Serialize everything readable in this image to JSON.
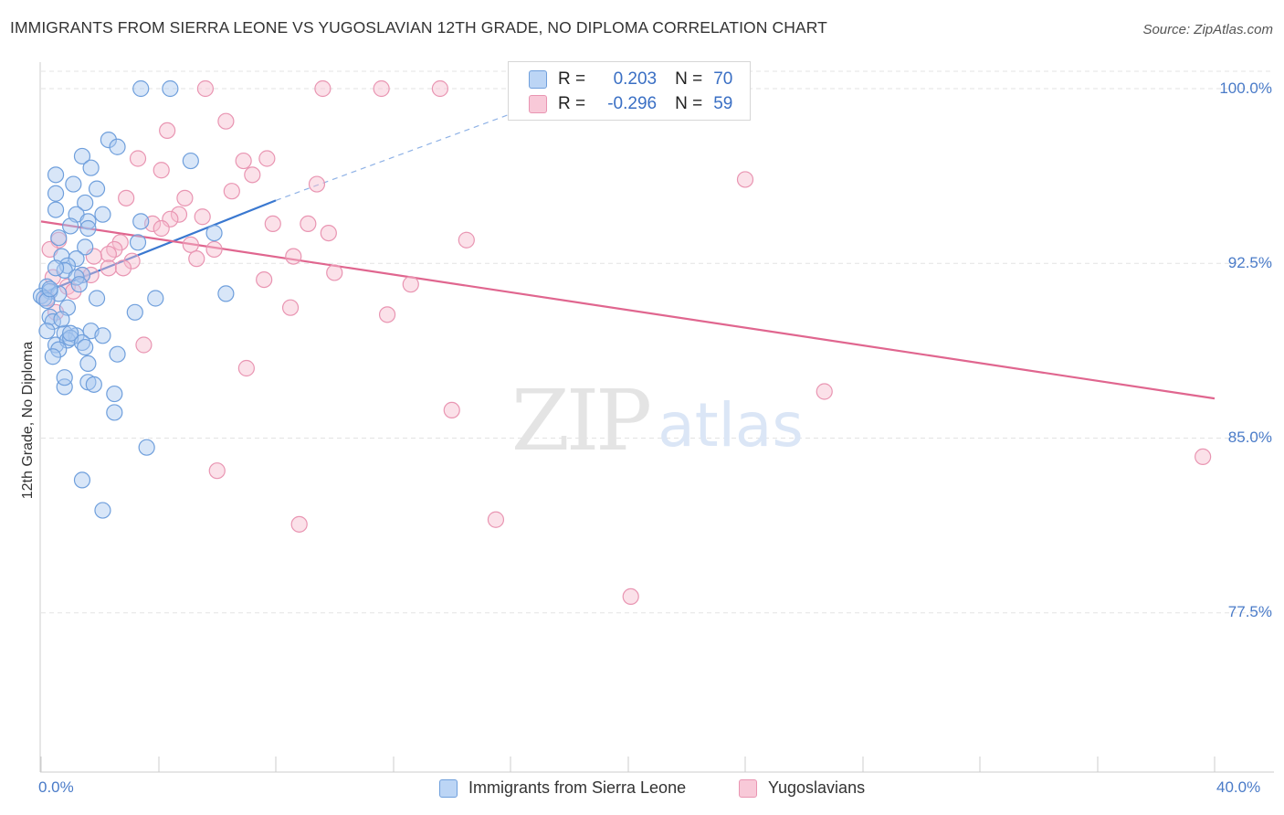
{
  "title": "IMMIGRANTS FROM SIERRA LEONE VS YUGOSLAVIAN 12TH GRADE, NO DIPLOMA CORRELATION CHART",
  "source": "Source: ZipAtlas.com",
  "watermark": {
    "zip": "ZIP",
    "atlas": "atlas"
  },
  "legend": {
    "r_label": "R =",
    "n_label": "N =",
    "series1": {
      "r": "0.203",
      "n": "70"
    },
    "series2": {
      "r": "-0.296",
      "n": "59"
    }
  },
  "colors": {
    "blue_fill": "#a9c8f0",
    "blue_stroke": "#6f9fdc",
    "blue_line": "#3a78d0",
    "pink_fill": "#f6bccf",
    "pink_stroke": "#e995b2",
    "pink_line": "#e0668f",
    "tick_text": "#4a7bc8",
    "grid": "#e3e3e3"
  },
  "chart_data": {
    "type": "scatter",
    "title": "IMMIGRANTS FROM SIERRA LEONE VS YUGOSLAVIAN 12TH GRADE, NO DIPLOMA CORRELATION CHART",
    "xlabel": "",
    "ylabel": "12th Grade, No Diploma",
    "xlim": [
      0,
      40
    ],
    "ylim": [
      70.0,
      101.0
    ],
    "x_tick_labels": [
      "0.0%",
      "40.0%"
    ],
    "y_ticks": [
      100.0,
      92.5,
      85.0,
      77.5
    ],
    "y_tick_labels": [
      "100.0%",
      "92.5%",
      "85.0%",
      "77.5%"
    ],
    "legend_position": "top-center",
    "series": [
      {
        "name": "Immigrants from Sierra Leone",
        "r": 0.203,
        "n": 70,
        "trend": {
          "x0": 0.0,
          "y0": 91.2,
          "x1": 8.0,
          "y1": 95.2,
          "dash_to_x": 20.5,
          "dash_to_y": 101.0
        },
        "points": [
          [
            3.4,
            100.0
          ],
          [
            4.4,
            100.0
          ],
          [
            2.3,
            97.8
          ],
          [
            2.6,
            97.5
          ],
          [
            1.4,
            97.1
          ],
          [
            5.1,
            96.9
          ],
          [
            1.7,
            96.6
          ],
          [
            0.5,
            96.3
          ],
          [
            1.1,
            95.9
          ],
          [
            1.9,
            95.7
          ],
          [
            0.5,
            95.5
          ],
          [
            1.5,
            95.1
          ],
          [
            0.5,
            94.8
          ],
          [
            1.2,
            94.6
          ],
          [
            2.1,
            94.6
          ],
          [
            3.4,
            94.3
          ],
          [
            1.6,
            94.3
          ],
          [
            1.0,
            94.1
          ],
          [
            1.6,
            94.0
          ],
          [
            5.9,
            93.8
          ],
          [
            0.6,
            93.6
          ],
          [
            3.3,
            93.4
          ],
          [
            1.5,
            93.2
          ],
          [
            0.7,
            92.8
          ],
          [
            1.2,
            92.7
          ],
          [
            0.9,
            92.4
          ],
          [
            0.8,
            92.2
          ],
          [
            1.4,
            92.0
          ],
          [
            1.2,
            91.9
          ],
          [
            1.3,
            91.6
          ],
          [
            0.2,
            91.5
          ],
          [
            0.3,
            91.3
          ],
          [
            0.6,
            91.2
          ],
          [
            0.0,
            91.1
          ],
          [
            0.1,
            91.0
          ],
          [
            1.9,
            91.0
          ],
          [
            3.9,
            91.0
          ],
          [
            6.3,
            91.2
          ],
          [
            0.9,
            90.6
          ],
          [
            3.2,
            90.4
          ],
          [
            0.3,
            90.2
          ],
          [
            0.4,
            90.0
          ],
          [
            0.2,
            89.6
          ],
          [
            1.7,
            89.6
          ],
          [
            0.8,
            89.5
          ],
          [
            1.2,
            89.4
          ],
          [
            2.1,
            89.4
          ],
          [
            0.5,
            89.0
          ],
          [
            0.9,
            89.2
          ],
          [
            1.0,
            89.3
          ],
          [
            1.4,
            89.1
          ],
          [
            0.6,
            88.8
          ],
          [
            2.6,
            88.6
          ],
          [
            0.4,
            88.5
          ],
          [
            1.6,
            88.2
          ],
          [
            1.6,
            87.4
          ],
          [
            1.8,
            87.3
          ],
          [
            0.8,
            87.2
          ],
          [
            0.8,
            87.6
          ],
          [
            2.5,
            86.9
          ],
          [
            2.5,
            86.1
          ],
          [
            3.6,
            84.6
          ],
          [
            1.4,
            83.2
          ],
          [
            2.1,
            81.9
          ],
          [
            0.2,
            90.9
          ],
          [
            0.7,
            90.1
          ],
          [
            1.0,
            89.5
          ],
          [
            1.5,
            88.9
          ],
          [
            0.3,
            91.4
          ],
          [
            0.5,
            92.3
          ]
        ]
      },
      {
        "name": "Yugoslavians",
        "r": -0.296,
        "n": 59,
        "trend": {
          "x0": 0.0,
          "y0": 94.3,
          "x1": 40.0,
          "y1": 86.7
        },
        "points": [
          [
            5.6,
            100.0
          ],
          [
            9.6,
            100.0
          ],
          [
            11.6,
            100.0
          ],
          [
            13.6,
            100.0
          ],
          [
            4.3,
            98.2
          ],
          [
            6.3,
            98.6
          ],
          [
            3.3,
            97.0
          ],
          [
            4.1,
            96.5
          ],
          [
            6.9,
            96.9
          ],
          [
            7.7,
            97.0
          ],
          [
            7.2,
            96.3
          ],
          [
            6.5,
            95.6
          ],
          [
            9.4,
            95.9
          ],
          [
            24.0,
            96.1
          ],
          [
            2.9,
            95.3
          ],
          [
            4.9,
            95.3
          ],
          [
            4.7,
            94.6
          ],
          [
            5.5,
            94.5
          ],
          [
            4.4,
            94.4
          ],
          [
            3.8,
            94.2
          ],
          [
            7.9,
            94.2
          ],
          [
            9.1,
            94.2
          ],
          [
            4.1,
            94.0
          ],
          [
            9.8,
            93.8
          ],
          [
            0.6,
            93.5
          ],
          [
            2.7,
            93.4
          ],
          [
            5.1,
            93.3
          ],
          [
            5.9,
            93.1
          ],
          [
            2.5,
            93.1
          ],
          [
            14.5,
            93.5
          ],
          [
            0.3,
            93.1
          ],
          [
            2.3,
            92.9
          ],
          [
            1.8,
            92.8
          ],
          [
            8.6,
            92.8
          ],
          [
            5.3,
            92.7
          ],
          [
            3.1,
            92.6
          ],
          [
            2.3,
            92.3
          ],
          [
            2.8,
            92.3
          ],
          [
            1.4,
            92.0
          ],
          [
            1.7,
            92.0
          ],
          [
            10.0,
            92.1
          ],
          [
            7.6,
            91.8
          ],
          [
            12.6,
            91.6
          ],
          [
            0.4,
            91.9
          ],
          [
            0.9,
            91.5
          ],
          [
            1.1,
            91.3
          ],
          [
            0.2,
            91.0
          ],
          [
            8.5,
            90.6
          ],
          [
            11.8,
            90.3
          ],
          [
            3.5,
            89.0
          ],
          [
            7.0,
            88.0
          ],
          [
            26.7,
            87.0
          ],
          [
            14.0,
            86.2
          ],
          [
            39.6,
            84.2
          ],
          [
            6.0,
            83.6
          ],
          [
            8.8,
            81.3
          ],
          [
            15.5,
            81.5
          ],
          [
            20.1,
            78.2
          ],
          [
            0.5,
            90.4
          ]
        ]
      }
    ]
  },
  "bottom_legend": [
    "Immigrants from Sierra Leone",
    "Yugoslavians"
  ]
}
